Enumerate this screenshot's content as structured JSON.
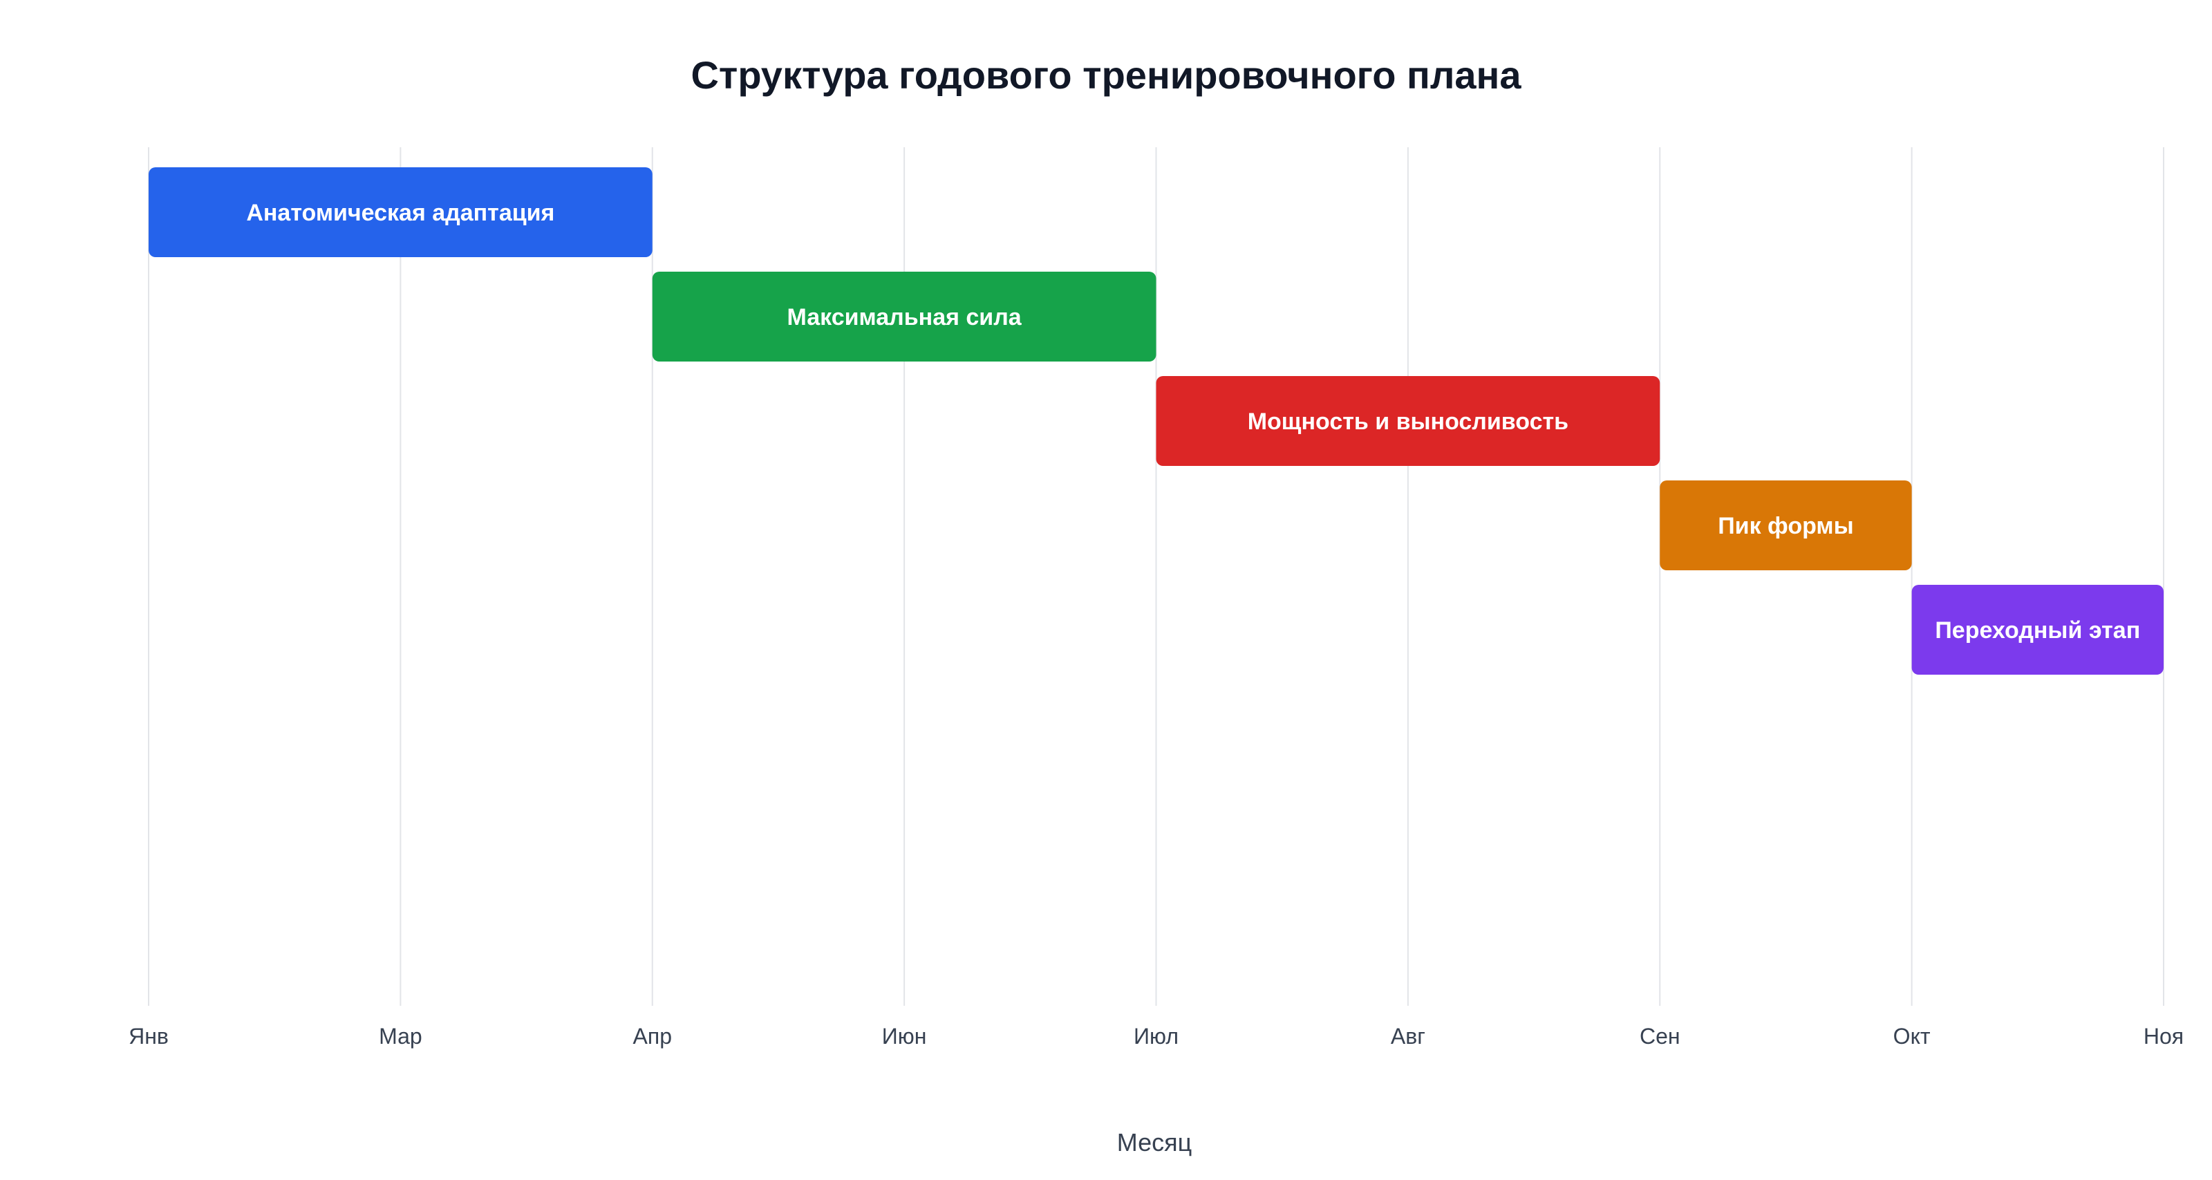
{
  "chart_data": {
    "type": "gantt",
    "title": "Структура годового тренировочного плана",
    "xlabel": "Месяц",
    "ylabel": "",
    "x_ticks": [
      "Янв",
      "Мар",
      "Апр",
      "Июн",
      "Июл",
      "Авг",
      "Сен",
      "Окт",
      "Ноя"
    ],
    "grid": true,
    "legend": "none",
    "tasks": [
      {
        "label": "Анатомическая адаптация",
        "start": "Янв",
        "end": "Апр",
        "color": "#2563eb"
      },
      {
        "label": "Максимальная сила",
        "start": "Апр",
        "end": "Июл",
        "color": "#16a34a"
      },
      {
        "label": "Мощность и выносливость",
        "start": "Июл",
        "end": "Сен",
        "color": "#dc2626"
      },
      {
        "label": "Пик формы",
        "start": "Сен",
        "end": "Окт",
        "color": "#d97706"
      },
      {
        "label": "Переходный этап",
        "start": "Окт",
        "end": "Ноя",
        "color": "#7c3aed"
      }
    ]
  }
}
